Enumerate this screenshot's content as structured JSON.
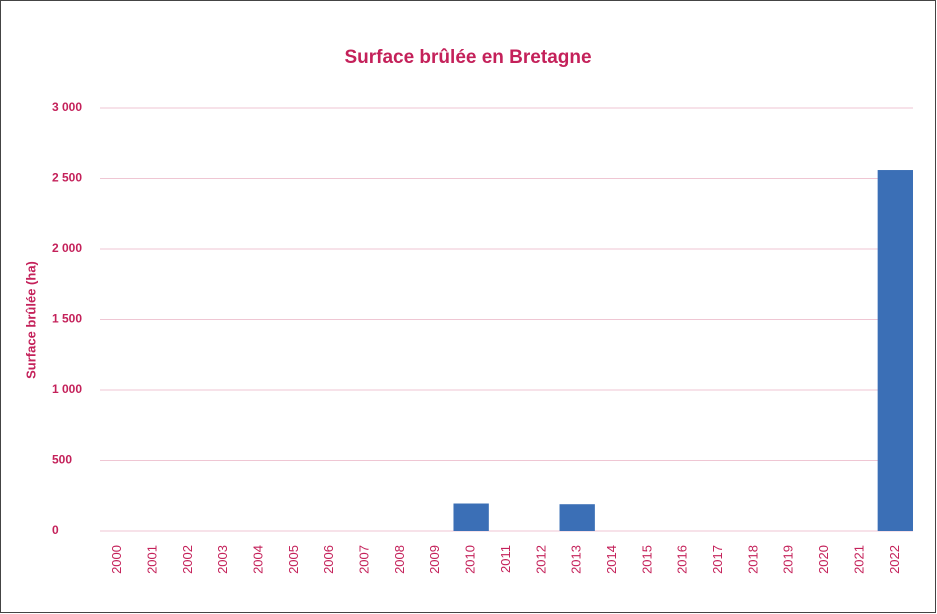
{
  "chart_data": {
    "type": "bar",
    "title": "Surface brûlée en Bretagne",
    "y_label": "Surface brûlée (ha)",
    "categories": [
      "2000",
      "2001",
      "2002",
      "2003",
      "2004",
      "2005",
      "2006",
      "2007",
      "2008",
      "2009",
      "2010",
      "2011",
      "2012",
      "2013",
      "2014",
      "2015",
      "2016",
      "2017",
      "2018",
      "2019",
      "2020",
      "2021",
      "2022"
    ],
    "values": [
      0,
      0,
      0,
      0,
      0,
      0,
      0,
      0,
      0,
      0,
      195,
      0,
      0,
      190,
      0,
      0,
      0,
      0,
      0,
      0,
      0,
      0,
      2560
    ],
    "color": "#3b6fb6",
    "ylim": [
      0,
      3000
    ],
    "yticks": [
      0,
      500,
      {
        "value": 1000,
        "label": "1 000"
      },
      {
        "value": 1500,
        "label": "1 500"
      },
      {
        "value": 2000,
        "label": "2 000"
      },
      {
        "value": 2500,
        "label": "2 500"
      },
      {
        "value": 3000,
        "label": "3 000"
      }
    ],
    "grid": true
  }
}
